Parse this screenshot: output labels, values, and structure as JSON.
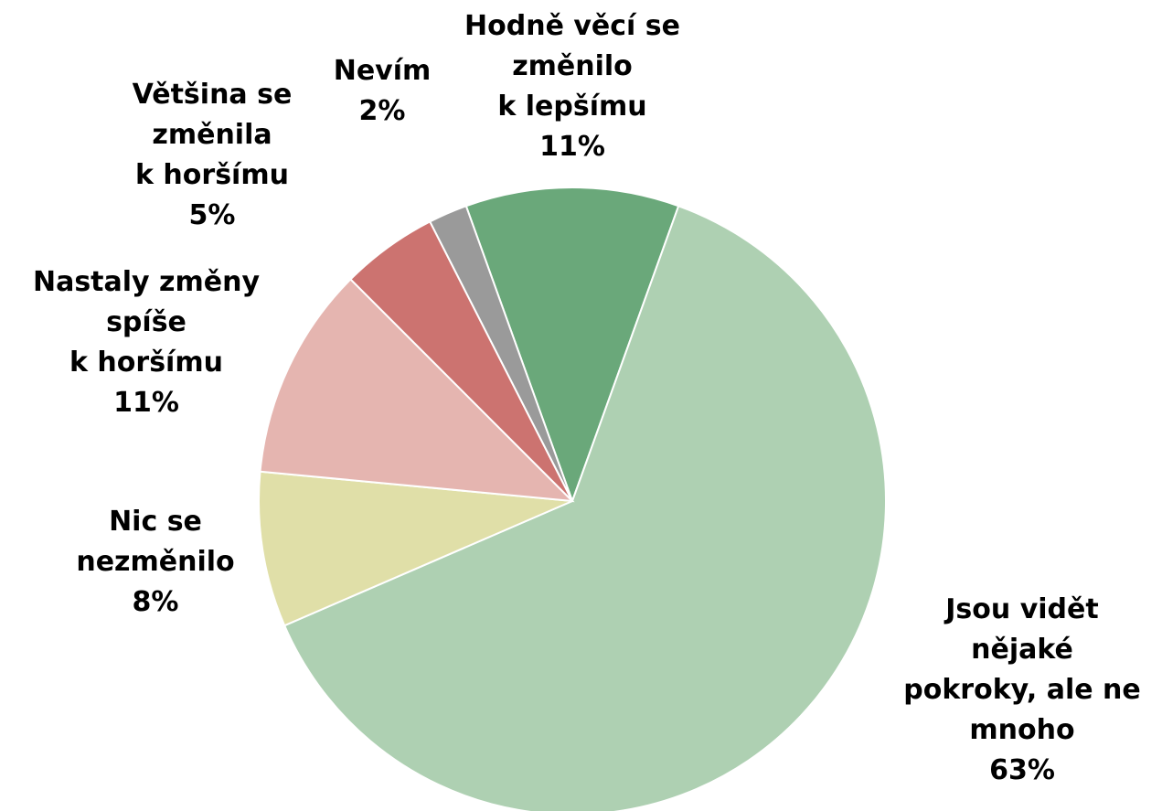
{
  "chart_data": {
    "type": "pie",
    "categories": [
      "Hodně věcí se\nzměnilo\nk lepšímu",
      "Jsou vidět\nnějaké\npokroky, ale ne\nmnoho",
      "Nic se\nnezměnilo",
      "Nastaly změny\nspíše\nk horšímu",
      "Většina se\nzměnila\nk horšímu",
      "Nevím"
    ],
    "values": [
      11,
      63,
      8,
      11,
      5,
      2
    ],
    "value_labels": [
      "11%",
      "63%",
      "8%",
      "11%",
      "5%",
      "2%"
    ],
    "colors": [
      "#6aa87a",
      "#aed0b2",
      "#e0dfa8",
      "#e5b5b0",
      "#cc7370",
      "#9a9a9a"
    ]
  }
}
